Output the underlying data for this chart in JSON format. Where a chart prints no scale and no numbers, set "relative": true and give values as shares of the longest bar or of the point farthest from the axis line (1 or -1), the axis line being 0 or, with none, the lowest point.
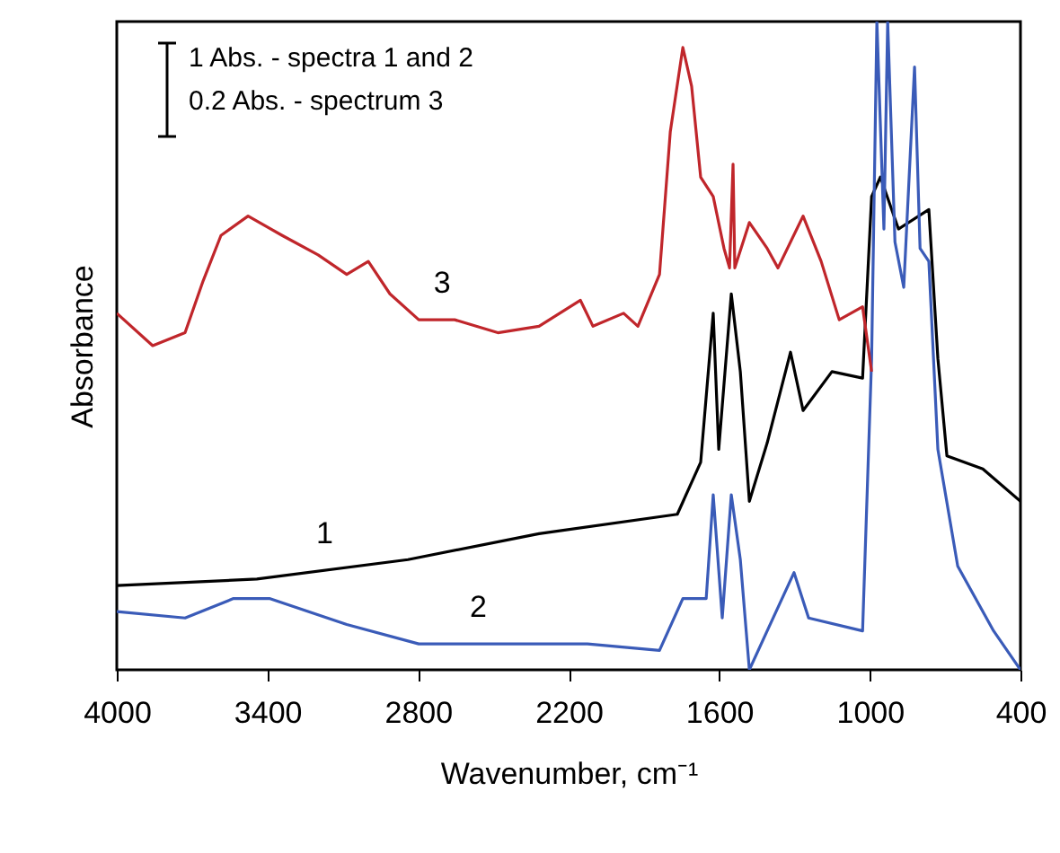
{
  "chart_data": {
    "type": "line",
    "xlabel": "Wavenumber, cm⁻¹",
    "ylabel": "Absorbance",
    "relative": true,
    "grid": false,
    "xlim": [
      4000,
      400
    ],
    "xticks": [
      4000,
      3400,
      2800,
      2200,
      1600,
      1000,
      400
    ],
    "annotations": [
      "1 Abs. - spectra 1 and 2",
      "0.2 Abs. - spectrum 3"
    ],
    "series": [
      {
        "name": "1",
        "color": "#000000",
        "x": [
          4000,
          3442,
          2840,
          2318,
          1767,
          1674,
          1624,
          1602,
          1552,
          1516,
          1480,
          1409,
          1316,
          1266,
          1151,
          1029,
          993,
          958,
          886,
          765,
          729,
          693,
          550,
          400
        ],
        "values": [
          0.13,
          0.14,
          0.17,
          0.21,
          0.24,
          0.32,
          0.55,
          0.34,
          0.58,
          0.46,
          0.26,
          0.35,
          0.49,
          0.4,
          0.46,
          0.45,
          0.73,
          0.76,
          0.68,
          0.71,
          0.48,
          0.33,
          0.31,
          0.26
        ]
      },
      {
        "name": "2",
        "color": "#3a5bb8",
        "x": [
          4000,
          3728,
          3535,
          3392,
          3084,
          2797,
          2318,
          2125,
          1838,
          1745,
          1652,
          1624,
          1588,
          1552,
          1516,
          1480,
          1409,
          1302,
          1244,
          1029,
          993,
          972,
          944,
          929,
          900,
          865,
          822,
          800,
          765,
          729,
          650,
          507,
          400
        ],
        "values": [
          0.09,
          0.08,
          0.11,
          0.11,
          0.07,
          0.04,
          0.04,
          0.04,
          0.03,
          0.11,
          0.11,
          0.27,
          0.08,
          0.27,
          0.17,
          0.0,
          0.06,
          0.15,
          0.08,
          0.06,
          0.48,
          1.0,
          0.68,
          1.0,
          0.66,
          0.59,
          0.93,
          0.65,
          0.63,
          0.34,
          0.16,
          0.06,
          0.0
        ]
      },
      {
        "name": "3",
        "color": "#c0262b",
        "x": [
          4000,
          3857,
          3728,
          3656,
          3585,
          3477,
          3341,
          3198,
          3084,
          2998,
          2912,
          2797,
          2654,
          2482,
          2318,
          2153,
          2103,
          1981,
          1924,
          1838,
          1795,
          1745,
          1710,
          1674,
          1624,
          1581,
          1559,
          1545,
          1538,
          1480,
          1409,
          1366,
          1266,
          1194,
          1122,
          1029,
          993
        ],
        "values": [
          0.55,
          0.5,
          0.52,
          0.6,
          0.67,
          0.7,
          0.67,
          0.64,
          0.61,
          0.63,
          0.58,
          0.54,
          0.54,
          0.52,
          0.53,
          0.57,
          0.53,
          0.55,
          0.53,
          0.61,
          0.83,
          0.96,
          0.9,
          0.76,
          0.73,
          0.65,
          0.62,
          0.78,
          0.62,
          0.69,
          0.65,
          0.62,
          0.7,
          0.63,
          0.54,
          0.56,
          0.46
        ]
      }
    ]
  }
}
